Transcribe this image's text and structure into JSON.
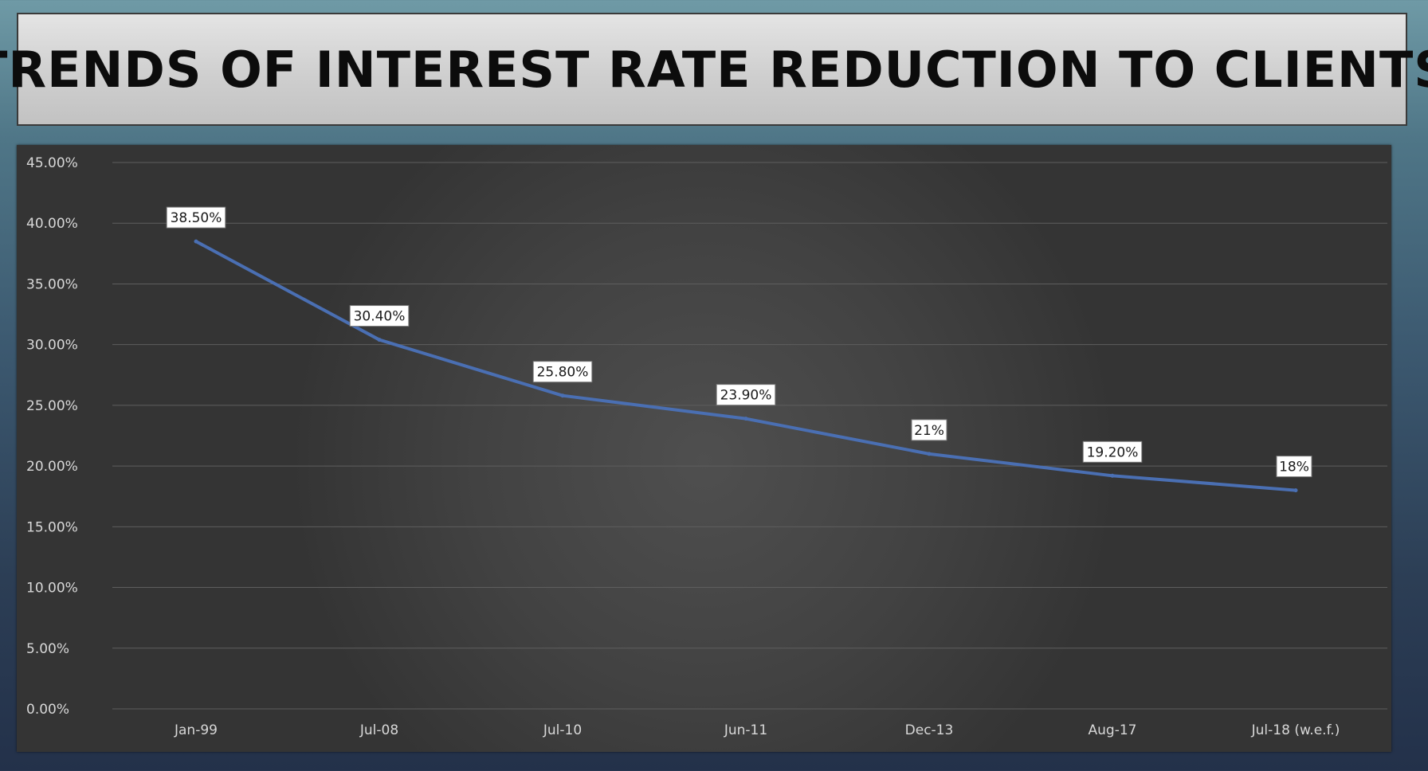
{
  "title": "TRENDS OF INTEREST RATE REDUCTION TO CLIENTS",
  "colors": {
    "line": "#4a6fb3",
    "grid": "#5e5e5e",
    "label_bg": "#ffffff"
  },
  "chart_data": {
    "type": "line",
    "categories": [
      "Jan-99",
      "Jul-08",
      "Jul-10",
      "Jun-11",
      "Dec-13",
      "Aug-17",
      "Jul-18 (w.e.f.)"
    ],
    "series": [
      {
        "values": [
          38.5,
          30.4,
          25.8,
          23.9,
          21,
          19.2,
          18
        ]
      }
    ],
    "data_labels": [
      "38.50%",
      "30.40%",
      "25.80%",
      "23.90%",
      "21%",
      "19.20%",
      "18%"
    ],
    "y_ticks": [
      "0.00%",
      "5.00%",
      "10.00%",
      "15.00%",
      "20.00%",
      "25.00%",
      "30.00%",
      "35.00%",
      "40.00%",
      "45.00%"
    ],
    "ylim": [
      0,
      45
    ],
    "grid": true,
    "legend": "none"
  }
}
